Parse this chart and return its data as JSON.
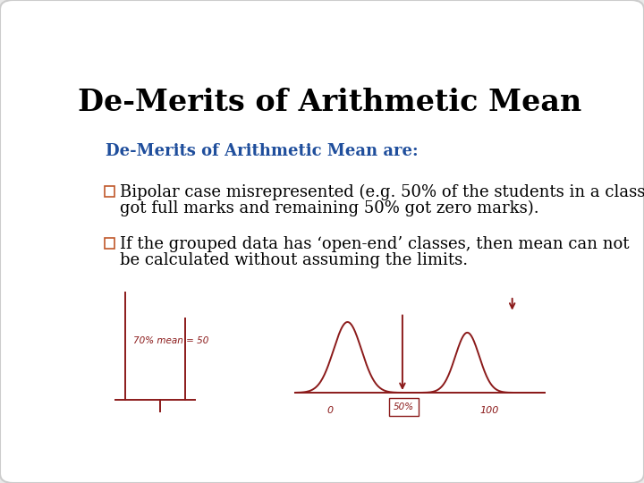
{
  "title": "De-Merits of Arithmetic Mean",
  "subtitle": "De-Merits of Arithmetic Mean are:",
  "subtitle_color": "#1F4E9C",
  "bullet1_line1": "Bipolar case misrepresented (e.g. 50% of the students in a class",
  "bullet1_line2": "got full marks and remaining 50% got zero marks).",
  "bullet2_line1": "If the grouped data has ‘open-end’ classes, then mean can not",
  "bullet2_line2": "be calculated without assuming the limits.",
  "background_color": "#e8e8e8",
  "slide_background": "#ffffff",
  "text_color": "#000000",
  "title_fontsize": 24,
  "subtitle_fontsize": 13,
  "body_fontsize": 13,
  "sketch_color": "#8B1A1A"
}
